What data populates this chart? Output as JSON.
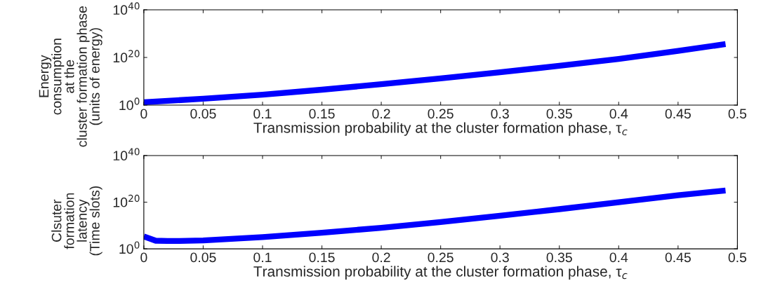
{
  "chart_data": [
    {
      "type": "line",
      "xlabel": "Transmission probability at the cluster formation phase, τ$_{c}$",
      "ylabel": "Energy\nconsumption\nat the\ncluster formation phase\n(units of energy)",
      "log": "y",
      "xlim": [
        0,
        0.5
      ],
      "xticks": [
        0,
        0.05,
        0.1,
        0.15,
        0.2,
        0.25,
        0.3,
        0.35,
        0.4,
        0.45,
        0.5
      ],
      "ylim": [
        1,
        1e+40
      ],
      "yticks": [
        {
          "value": 1,
          "label": "10$^{0}$"
        },
        {
          "value": 1e+20,
          "label": "10$^{20}$"
        },
        {
          "value": 1e+40,
          "label": "10$^{40}$"
        }
      ],
      "grid": false,
      "legend": false,
      "series": [
        {
          "color": "#0000ff",
          "x": [
            0,
            0.05,
            0.1,
            0.15,
            0.2,
            0.25,
            0.3,
            0.35,
            0.4,
            0.45,
            0.49
          ],
          "values": [
            16,
            500,
            25000.0,
            3000000.0,
            600000000.0,
            160000000000.0,
            60000000000000.0,
            3e+16,
            2.5e+19,
            6e+22,
            4e+25
          ]
        }
      ]
    },
    {
      "type": "line",
      "xlabel": "Transmission probability at the cluster formation phase, τ$_{c}$",
      "ylabel": "Clsuter\nformation\nlatency\n(Time slots)",
      "log": "y",
      "xlim": [
        0,
        0.5
      ],
      "xticks": [
        0,
        0.05,
        0.1,
        0.15,
        0.2,
        0.25,
        0.3,
        0.35,
        0.4,
        0.45,
        0.5
      ],
      "ylim": [
        1,
        1e+40
      ],
      "yticks": [
        {
          "value": 1,
          "label": "10$^{0}$"
        },
        {
          "value": 1e+20,
          "label": "10$^{20}$"
        },
        {
          "value": 1e+40,
          "label": "10$^{40}$"
        }
      ],
      "grid": false,
      "legend": false,
      "series": [
        {
          "color": "#0000ff",
          "x": [
            0,
            0.01,
            0.02,
            0.03,
            0.05,
            0.1,
            0.15,
            0.2,
            0.25,
            0.3,
            0.35,
            0.4,
            0.45,
            0.49
          ],
          "values": [
            200000.0,
            3000.0,
            2500.0,
            2500.0,
            4000.0,
            100000.0,
            8000000.0,
            1000000000.0,
            300000000000.0,
            160000000000000.0,
            1e+17,
            1e+20,
            1e+23,
            1e+25
          ]
        }
      ]
    }
  ]
}
